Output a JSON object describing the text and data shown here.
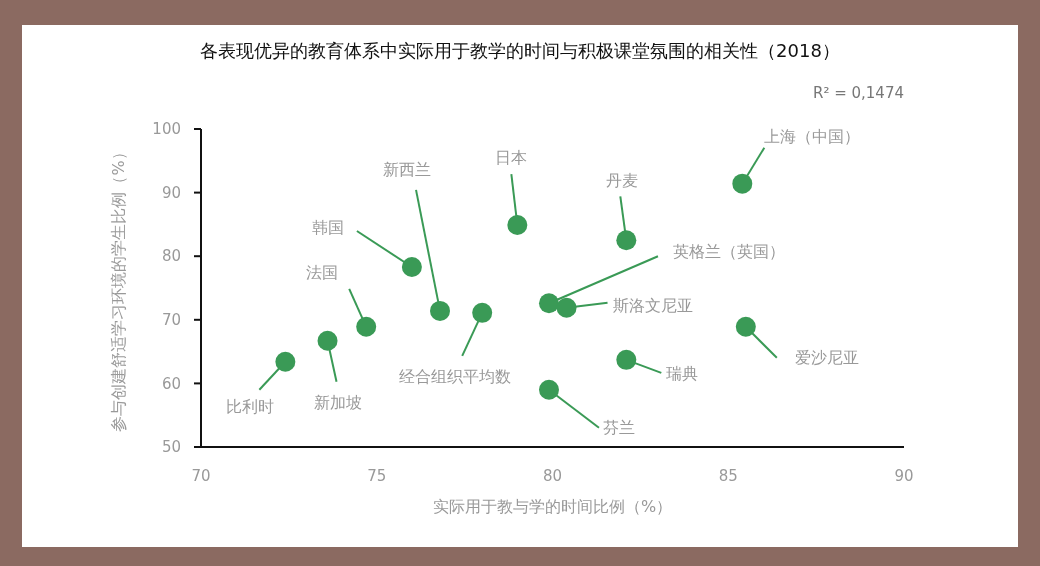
{
  "chart_data": {
    "type": "scatter",
    "title": "各表现优异的教育体系中实际用于教学的时间与积极课堂氛围的相关性（2018）",
    "xlabel": "实际用于教与学的时间比例（%）",
    "ylabel": "参与创建舒适学习环境的学生比例（%）",
    "x": [
      72.4,
      73.6,
      74.7,
      76.0,
      76.8,
      78.0,
      79.0,
      79.9,
      79.9,
      80.4,
      82.1,
      82.1,
      85.4,
      85.5
    ],
    "series": [
      {
        "color": "#3a9a56",
        "values": [
          63.4,
          66.7,
          68.9,
          78.3,
          71.4,
          71.1,
          84.9,
          59.0,
          72.6,
          71.9,
          82.5,
          63.7,
          91.4,
          68.9
        ]
      }
    ],
    "xlim": [
      70,
      90
    ],
    "xticks": [
      70,
      75,
      80,
      85,
      90
    ],
    "ylim": [
      50,
      100
    ],
    "yticks": [
      50,
      60,
      70,
      80,
      90,
      100
    ],
    "grid": false,
    "marker": "circle",
    "annotations": [
      "R² = 0,1474",
      {
        "text": "比利时",
        "x": 72.4,
        "y": 63.4
      },
      {
        "text": "新加坡",
        "x": 73.6,
        "y": 66.7
      },
      {
        "text": "法国",
        "x": 74.7,
        "y": 68.9
      },
      {
        "text": "韩国",
        "x": 76.0,
        "y": 78.3
      },
      {
        "text": "新西兰",
        "x": 76.8,
        "y": 71.4
      },
      {
        "text": "经合组织平均数",
        "x": 78.0,
        "y": 71.1
      },
      {
        "text": "日本",
        "x": 79.0,
        "y": 84.9
      },
      {
        "text": "芬兰",
        "x": 79.9,
        "y": 59.0
      },
      {
        "text": "英格兰（英国）",
        "x": 79.9,
        "y": 72.6
      },
      {
        "text": "斯洛文尼亚",
        "x": 80.4,
        "y": 71.9
      },
      {
        "text": "丹麦",
        "x": 82.1,
        "y": 82.5
      },
      {
        "text": "瑞典",
        "x": 82.1,
        "y": 63.7
      },
      {
        "text": "上海（中国）",
        "x": 85.4,
        "y": 91.4
      },
      {
        "text": "爱沙尼亚",
        "x": 85.5,
        "y": 68.9
      }
    ]
  }
}
